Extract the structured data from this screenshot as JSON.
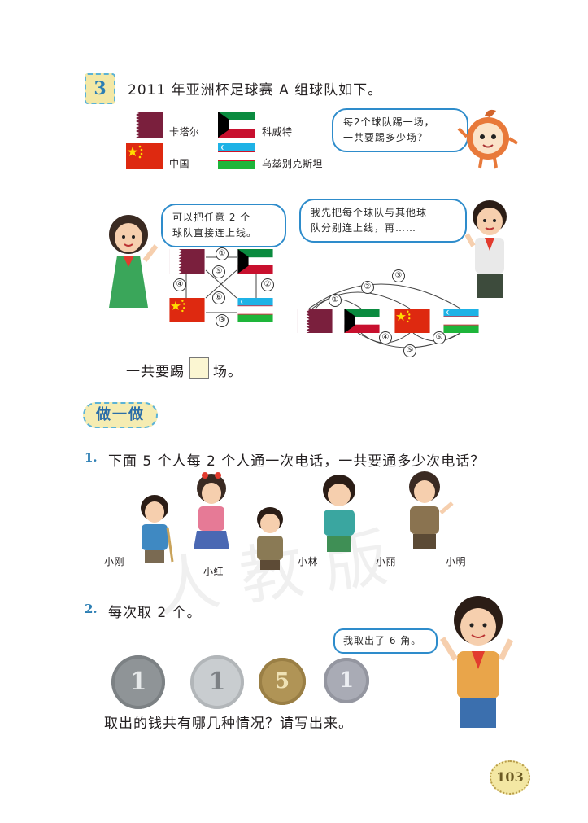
{
  "problem3": {
    "number": "3",
    "title": "2011 年亚洲杯足球赛 A 组球队如下。",
    "teams": [
      {
        "name": "卡塔尔",
        "flag": "qatar-flag"
      },
      {
        "name": "科威特",
        "flag": "kuwait-flag"
      },
      {
        "name": "中国",
        "flag": "china-flag"
      },
      {
        "name": "乌兹别克斯坦",
        "flag": "uzbekistan-flag"
      }
    ],
    "mascot_bubble": "每2个球队踢一场，\n一共要踢多少场？",
    "girl_bubble": "可以把任意 2 个\n球队直接连上线。",
    "boy_bubble": "我先把每个球队与其他球\n队分别连上线，再……",
    "diagram_a_labels": [
      "①",
      "②",
      "③",
      "④",
      "⑤",
      "⑥"
    ],
    "diagram_b_labels": [
      "①",
      "②",
      "③",
      "④",
      "⑤",
      "⑥"
    ],
    "answer_prefix": "一共要踢",
    "answer_suffix": "场。"
  },
  "section": {
    "title": "做一做"
  },
  "q1": {
    "number": "1.",
    "text": "下面 5 个人每 2 个人通一次电话，一共要通多少次电话？",
    "people": [
      "小刚",
      "小红",
      "小林",
      "小丽",
      "小明"
    ]
  },
  "q2": {
    "number": "2.",
    "text": "每次取 2 个。",
    "bubble": "我取出了 6 角。",
    "coins": [
      "1",
      "1",
      "5",
      "1"
    ],
    "prompt": "取出的钱共有哪几种情况？请写出来。"
  },
  "page_number": "103",
  "colors": {
    "accent_blue": "#2d7fb4",
    "bubble_border": "#2e8ccb",
    "badge_bg": "#f3e8a6"
  }
}
